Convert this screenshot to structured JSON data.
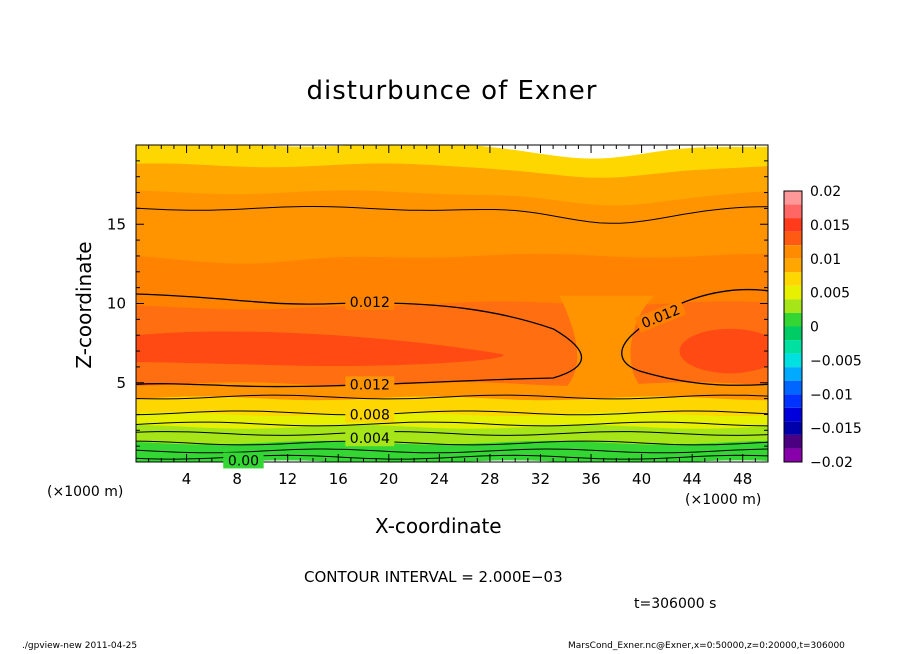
{
  "chart_data": {
    "type": "contour",
    "title": "disturbunce of Exner",
    "xlabel": "X-coordinate",
    "ylabel": "Z-coordinate",
    "x_unit_label": "(×1000 m)",
    "x_ticks": [
      4,
      8,
      12,
      16,
      20,
      24,
      28,
      32,
      36,
      40,
      44,
      48
    ],
    "y_ticks": [
      5,
      10,
      15
    ],
    "xlim": [
      0,
      50
    ],
    "ylim": [
      0,
      20
    ],
    "colorbar": {
      "ticks": [
        "0.02",
        "0.015",
        "0.01",
        "0.005",
        "0",
        "−0.005",
        "−0.01",
        "−0.015",
        "−0.02"
      ],
      "range": [
        -0.02,
        0.02
      ],
      "levels": [
        {
          "lo": 0.018,
          "hi": 0.02,
          "color": "#ff9999"
        },
        {
          "lo": 0.016,
          "hi": 0.018,
          "color": "#ff6666"
        },
        {
          "lo": 0.014,
          "hi": 0.016,
          "color": "#ff3b1c"
        },
        {
          "lo": 0.012,
          "hi": 0.014,
          "color": "#ff5a14"
        },
        {
          "lo": 0.01,
          "hi": 0.012,
          "color": "#ff8c00"
        },
        {
          "lo": 0.008,
          "hi": 0.01,
          "color": "#ffa600"
        },
        {
          "lo": 0.006,
          "hi": 0.008,
          "color": "#ffd700"
        },
        {
          "lo": 0.004,
          "hi": 0.006,
          "color": "#e6f000"
        },
        {
          "lo": 0.002,
          "hi": 0.004,
          "color": "#a6e619"
        },
        {
          "lo": 0.0,
          "hi": 0.002,
          "color": "#33d633"
        },
        {
          "lo": -0.002,
          "hi": 0.0,
          "color": "#00cc66"
        },
        {
          "lo": -0.004,
          "hi": -0.002,
          "color": "#00e0a0"
        },
        {
          "lo": -0.006,
          "hi": -0.004,
          "color": "#00e0e0"
        },
        {
          "lo": -0.008,
          "hi": -0.006,
          "color": "#00aaff"
        },
        {
          "lo": -0.01,
          "hi": -0.008,
          "color": "#0066ff"
        },
        {
          "lo": -0.012,
          "hi": -0.01,
          "color": "#0033ff"
        },
        {
          "lo": -0.014,
          "hi": -0.012,
          "color": "#0000dd"
        },
        {
          "lo": -0.016,
          "hi": -0.014,
          "color": "#0000aa"
        },
        {
          "lo": -0.018,
          "hi": -0.016,
          "color": "#4b0082"
        },
        {
          "lo": -0.02,
          "hi": -0.018,
          "color": "#8800aa"
        }
      ]
    },
    "bands": [
      {
        "z": [
          18.7,
          20
        ],
        "color": "#ffd700"
      },
      {
        "z": [
          17.0,
          18.7
        ],
        "color": "#ffa600"
      },
      {
        "z": [
          13.0,
          17.0
        ],
        "color": "#ff9400"
      },
      {
        "z": [
          10.0,
          13.0
        ],
        "color": "#ff8200"
      },
      {
        "z": [
          4.9,
          10.0
        ],
        "color": "#ff6e10"
      },
      {
        "z": [
          4.0,
          4.9
        ],
        "color": "#ff9400"
      },
      {
        "z": [
          3.0,
          4.0
        ],
        "color": "#ffd700"
      },
      {
        "z": [
          2.2,
          3.0
        ],
        "color": "#e6f000"
      },
      {
        "z": [
          1.2,
          2.2
        ],
        "color": "#a6e619"
      },
      {
        "z": [
          0,
          1.2
        ],
        "color": "#33d633"
      }
    ],
    "core_color": "#ff4a14",
    "contour_labels": [
      "0.012",
      "0.012",
      "0.012",
      "0.008",
      "0.004",
      "0.00"
    ],
    "contour_interval": "CONTOUR INTERVAL = 2.000E−03",
    "time": "t=306000 s"
  },
  "footer": {
    "left": "./gpview-new  2011-04-25",
    "right": "MarsCond_Exner.nc@Exner,x=0:50000,z=0:20000,t=306000"
  }
}
